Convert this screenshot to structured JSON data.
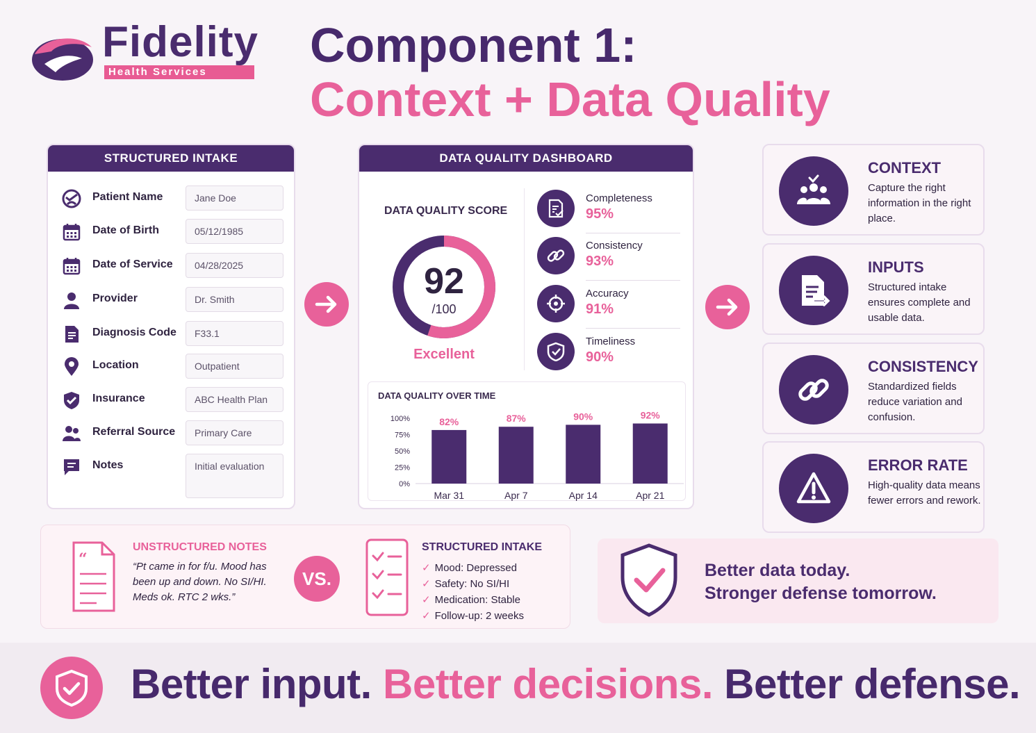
{
  "colors": {
    "purple": "#4a2c6e",
    "pink": "#e8619a",
    "background": "#f8f4f8"
  },
  "logo": {
    "wordmark": "Fidelity",
    "tagline": "Health Services",
    "icon": "swirl-logo-icon"
  },
  "title": {
    "line1": "Component 1:",
    "line2": "Context + Data Quality"
  },
  "intake": {
    "header": "STRUCTURED INTAKE",
    "fields": [
      {
        "icon": "patient-icon",
        "label": "Patient Name",
        "value": "Jane Doe"
      },
      {
        "icon": "calendar-icon",
        "label": "Date of Birth",
        "value": "05/12/1985"
      },
      {
        "icon": "calendar-icon",
        "label": "Date of Service",
        "value": "04/28/2025"
      },
      {
        "icon": "person-icon",
        "label": "Provider",
        "value": "Dr. Smith"
      },
      {
        "icon": "document-icon",
        "label": "Diagnosis Code",
        "value": "F33.1"
      },
      {
        "icon": "location-pin-icon",
        "label": "Location",
        "value": "Outpatient"
      },
      {
        "icon": "shield-check-icon",
        "label": "Insurance",
        "value": "ABC Health Plan"
      },
      {
        "icon": "people-icon",
        "label": "Referral Source",
        "value": "Primary Care"
      },
      {
        "icon": "chat-icon",
        "label": "Notes",
        "value": "Initial evaluation"
      }
    ]
  },
  "dashboard": {
    "header": "DATA QUALITY DASHBOARD",
    "score_label": "DATA QUALITY SCORE",
    "score": "92",
    "score_value": 92,
    "score_max": "/100",
    "rating": "Excellent",
    "metrics": [
      {
        "icon": "checklist-icon",
        "name": "Completeness",
        "value": "95%"
      },
      {
        "icon": "link-icon",
        "name": "Consistency",
        "value": "93%"
      },
      {
        "icon": "target-icon",
        "name": "Accuracy",
        "value": "91%"
      },
      {
        "icon": "shield-icon",
        "name": "Timeliness",
        "value": "90%"
      }
    ]
  },
  "chart_data": {
    "type": "bar",
    "title": "DATA QUALITY OVER TIME",
    "categories": [
      "Mar 31",
      "Apr 7",
      "Apr 14",
      "Apr 21"
    ],
    "values": [
      82,
      87,
      90,
      92
    ],
    "data_labels": [
      "82%",
      "87%",
      "90%",
      "92%"
    ],
    "y_ticks": [
      "0%",
      "25%",
      "50%",
      "75%",
      "100%"
    ],
    "ylim": [
      0,
      100
    ],
    "grid": false
  },
  "features": [
    {
      "icon": "team-icon",
      "title": "CONTEXT",
      "desc": "Capture the right information in the right place."
    },
    {
      "icon": "form-input-icon",
      "title": "INPUTS",
      "desc": "Structured intake ensures complete and usable data."
    },
    {
      "icon": "chain-link-icon",
      "title": "CONSISTENCY",
      "desc": "Standardized fields reduce variation and confusion."
    },
    {
      "icon": "warning-icon",
      "title": "ERROR RATE",
      "desc": "High-quality data means fewer errors and rework."
    }
  ],
  "comparison": {
    "unstructured_title": "UNSTRUCTURED NOTES",
    "unstructured_text": "“Pt came in for f/u. Mood has been up and down. No SI/HI. Meds ok. RTC 2 wks.”",
    "vs": "VS.",
    "structured_title": "STRUCTURED INTAKE",
    "structured_items": [
      "Mood: Depressed",
      "Safety: No SI/HI",
      "Medication: Stable",
      "Follow-up: 2 weeks"
    ]
  },
  "tagline": {
    "line1": "Better data today.",
    "line2": "Stronger defense tomorrow."
  },
  "footer": {
    "part1": "Better input.",
    "part2": "Better decisions.",
    "part3": "Better defense."
  }
}
